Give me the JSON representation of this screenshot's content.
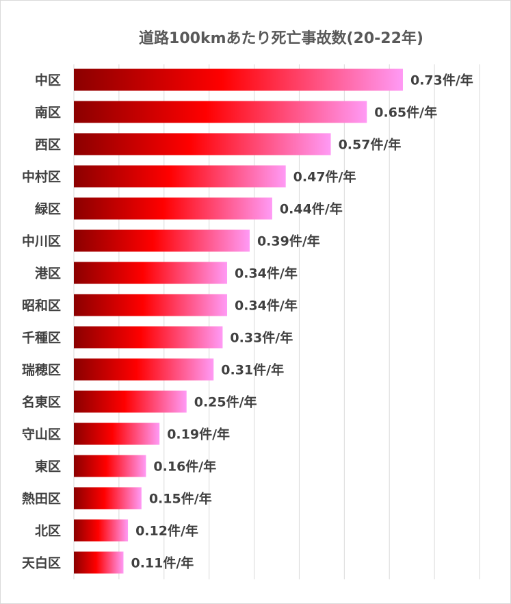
{
  "chart_data": {
    "type": "bar",
    "orientation": "horizontal",
    "title": "道路100kmあたり死亡事故数(20-22年)",
    "categories": [
      "中区",
      "南区",
      "西区",
      "中村区",
      "緑区",
      "中川区",
      "港区",
      "昭和区",
      "千種区",
      "瑞穂区",
      "名東区",
      "守山区",
      "東区",
      "熱田区",
      "北区",
      "天白区"
    ],
    "values": [
      0.73,
      0.65,
      0.57,
      0.47,
      0.44,
      0.39,
      0.34,
      0.34,
      0.33,
      0.31,
      0.25,
      0.19,
      0.16,
      0.15,
      0.12,
      0.11
    ],
    "value_labels": [
      "0.73件/年",
      "0.65件/年",
      "0.57件/年",
      "0.47件/年",
      "0.44件/年",
      "0.39件/年",
      "0.34件/年",
      "0.34件/年",
      "0.33件/年",
      "0.31件/年",
      "0.25件/年",
      "0.19件/年",
      "0.16件/年",
      "0.15件/年",
      "0.12件/年",
      "0.11件/年"
    ],
    "xlim": [
      0,
      0.9
    ],
    "grid": true,
    "gridline_step": 0.1,
    "colors": {
      "bar_gradient": [
        "#8b0000",
        "#ff0000",
        "#ff9af5"
      ],
      "gridline": "#d9d9d9",
      "text": "#404040",
      "title": "#595959"
    }
  }
}
